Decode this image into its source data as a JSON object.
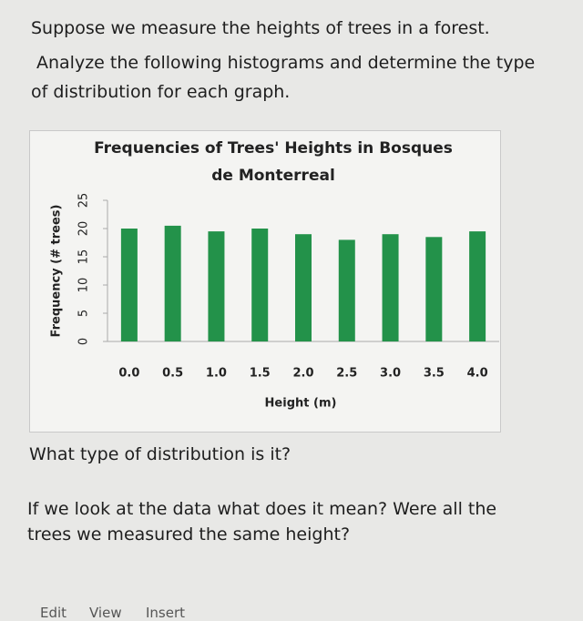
{
  "intro": [
    "Suppose we measure the heights of trees in a forest.",
    "Analyze the following histograms and determine the type",
    "of distribution for each graph."
  ],
  "chart_data": {
    "type": "bar",
    "title": "Frequencies of Trees' Heights in Bosques de Monterreal",
    "x_label": "Height (m)",
    "y_label": "Frequency (# trees)",
    "categories": [
      "0.0",
      "0.5",
      "1.0",
      "1.5",
      "2.0",
      "2.5",
      "3.0",
      "3.5",
      "4.0"
    ],
    "values": [
      20,
      20.5,
      19.5,
      20,
      19,
      18,
      19,
      18.5,
      19.5
    ],
    "color": "#23924a",
    "ylim": [
      0,
      25
    ],
    "yticks": [
      0,
      5,
      10,
      15,
      20,
      25
    ]
  },
  "questions": [
    "What type of distribution is it?",
    "If we look at the data what does it mean? Were all the",
    "trees we measured the same height?"
  ],
  "menu": [
    "Edit",
    "View",
    "Insert"
  ]
}
